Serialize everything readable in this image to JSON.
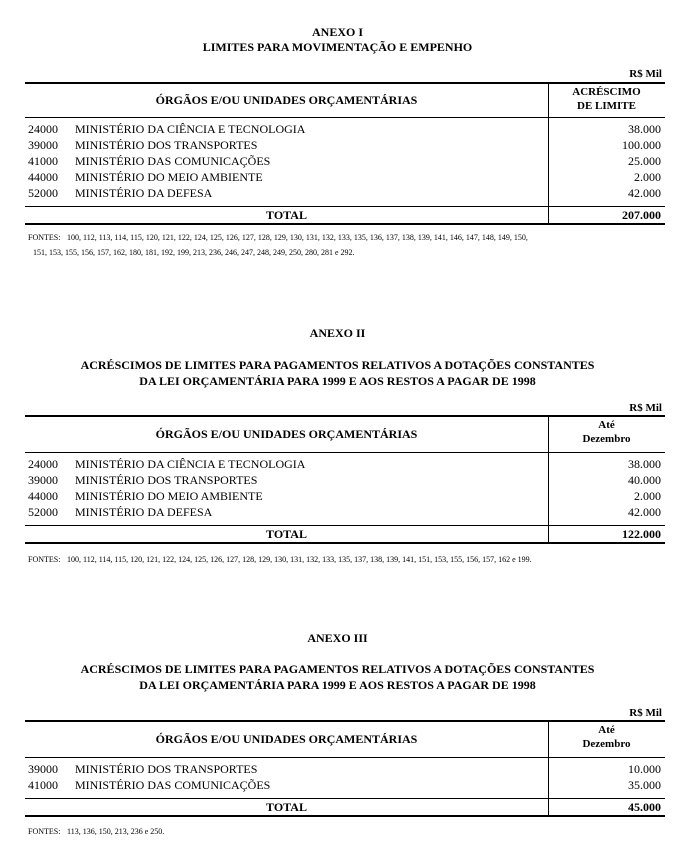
{
  "annexes": [
    {
      "heading": "ANEXO I",
      "title_lines": [
        "LIMITES PARA MOVIMENTAÇÃO E EMPENHO"
      ],
      "unit": "R$ Mil",
      "table": {
        "header": {
          "org": "ÓRGÃOS E/OU UNIDADES ORÇAMENTÁRIAS",
          "amount": [
            "ACRÉSCIMO",
            "DE LIMITE"
          ]
        },
        "rows": [
          [
            "24000",
            "MINISTÉRIO DA CIÊNCIA E  TECNOLOGIA",
            "38.000"
          ],
          [
            "39000",
            "MINISTÉRIO DOS TRANSPORTES",
            "100.000"
          ],
          [
            "41000",
            "MINISTÉRIO DAS COMUNICAÇÕES",
            "25.000"
          ],
          [
            "44000",
            "MINISTÉRIO DO MEIO AMBIENTE",
            "2.000"
          ],
          [
            "52000",
            "MINISTÉRIO DA DEFESA",
            "42.000"
          ]
        ],
        "total": [
          "TOTAL",
          "207.000"
        ]
      },
      "sources": {
        "label": "FONTES:",
        "lines": [
          "100, 112, 113, 114, 115, 120, 121, 122, 124, 125, 126, 127, 128, 129, 130, 131, 132, 133, 135, 136, 137, 138, 139, 141, 146, 147, 148, 149, 150,",
          "151, 153, 155, 156, 157, 162, 180, 181, 192, 199, 213, 236, 246, 247, 248, 249, 250, 280, 281 e 292."
        ]
      }
    },
    {
      "heading": "ANEXO II",
      "title_lines": [
        "ACRÉSCIMOS DE LIMITES PARA PAGAMENTOS RELATIVOS A DOTAÇÕES CONSTANTES",
        "DA LEI ORÇAMENTÁRIA PARA 1999 E AOS RESTOS A PAGAR DE 1998"
      ],
      "unit": "R$ Mil",
      "table": {
        "header": {
          "org": "ÓRGÃOS E/OU UNIDADES ORÇAMENTÁRIAS",
          "amount": [
            "Até",
            "Dezembro"
          ]
        },
        "rows": [
          [
            "24000",
            "MINISTÉRIO DA CIÊNCIA E  TECNOLOGIA",
            "38.000"
          ],
          [
            "39000",
            "MINISTÉRIO DOS TRANSPORTES",
            "40.000"
          ],
          [
            "44000",
            "MINISTÉRIO DO MEIO AMBIENTE",
            "2.000"
          ],
          [
            "52000",
            "MINISTÉRIO DA DEFESA",
            "42.000"
          ]
        ],
        "total": [
          "TOTAL",
          "122.000"
        ]
      },
      "sources": {
        "label": "FONTES:",
        "lines": [
          "100, 112, 114, 115, 120, 121, 122, 124, 125, 126, 127, 128, 129, 130, 131, 132, 133, 135, 137, 138, 139, 141, 151, 153, 155, 156, 157, 162 e 199."
        ]
      }
    },
    {
      "heading": "ANEXO III",
      "title_lines": [
        "ACRÉSCIMOS DE LIMITES PARA PAGAMENTOS RELATIVOS A DOTAÇÕES CONSTANTES",
        "DA LEI ORÇAMENTÁRIA PARA 1999 E AOS RESTOS A PAGAR DE 1998"
      ],
      "unit": "R$ Mil",
      "table": {
        "header": {
          "org": "ÓRGÃOS E/OU UNIDADES ORÇAMENTÁRIAS",
          "amount": [
            "Até",
            "Dezembro"
          ]
        },
        "rows": [
          [
            "39000",
            "MINISTÉRIO DOS TRANSPORTES",
            "10.000"
          ],
          [
            "41000",
            "MINISTÉRIO DAS COMUNICAÇÕES",
            "35.000"
          ]
        ],
        "total": [
          "TOTAL",
          "45.000"
        ]
      },
      "sources": {
        "label": "FONTES:",
        "lines": [
          "113, 136, 150, 213, 236 e 250."
        ]
      }
    }
  ]
}
